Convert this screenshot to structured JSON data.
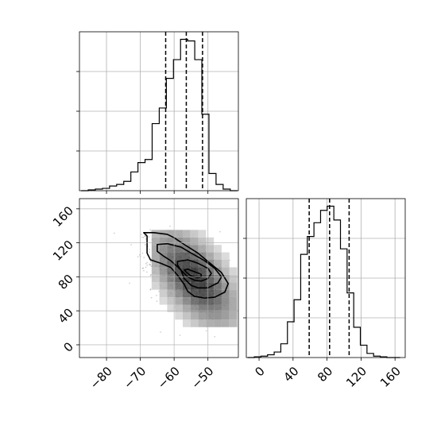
{
  "chart_data": [
    {
      "id": "hist1",
      "type": "histogram",
      "x_range": [
        -88,
        -41
      ],
      "x_ticks": [
        -80,
        -70,
        -60,
        -50
      ],
      "y_ticks": [
        2,
        4,
        6
      ],
      "y_tick_labels_shown": false,
      "grid": true,
      "bin_edges": [
        -87.5,
        -85.4,
        -83.3,
        -81.2,
        -79.1,
        -77.0,
        -74.9,
        -72.8,
        -70.7,
        -68.6,
        -66.5,
        -64.4,
        -62.3,
        -60.2,
        -58.1,
        -56.0,
        -53.9,
        -51.8,
        -49.7,
        -47.6,
        -45.5,
        -43.4,
        -41.3
      ],
      "counts": [
        0.0,
        0.05,
        0.1,
        0.15,
        0.3,
        0.4,
        0.6,
        1.2,
        1.8,
        2.0,
        4.3,
        5.3,
        7.2,
        8.4,
        9.7,
        9.6,
        8.4,
        4.9,
        1.1,
        0.4,
        0.1,
        0.0
      ],
      "quantile_lines": [
        -62.5,
        -56.4,
        -51.6
      ]
    },
    {
      "id": "hist2",
      "type": "histogram",
      "x_range": [
        -15,
        172
      ],
      "x_ticks": [
        0,
        40,
        80,
        120,
        160
      ],
      "x_tick_labels": [
        "0",
        "40",
        "80",
        "120",
        "160"
      ],
      "y_tick_labels_shown": false,
      "grid": true,
      "bin_edges": [
        -13.4,
        -5.6,
        2.2,
        10.0,
        17.8,
        25.6,
        33.4,
        41.2,
        49.0,
        56.8,
        64.6,
        72.4,
        80.2,
        88.0,
        95.8,
        103.6,
        111.4,
        119.2,
        127.0,
        134.8,
        142.6,
        150.4,
        158.2,
        166.0
      ],
      "counts": [
        0.0,
        0.05,
        0.1,
        0.2,
        0.4,
        1.0,
        2.6,
        4.2,
        7.5,
        8.8,
        9.8,
        10.7,
        11.0,
        10.0,
        7.9,
        4.7,
        2.2,
        0.9,
        0.3,
        0.1,
        0.05,
        0.0,
        0.0
      ],
      "quantile_lines": [
        59,
        83,
        106
      ]
    },
    {
      "id": "joint",
      "type": "scatter-density",
      "x_range": [
        -88,
        -41
      ],
      "y_range": [
        -15,
        172
      ],
      "x_ticks": [
        -80,
        -70,
        -60,
        -50
      ],
      "x_tick_labels": [
        "−80",
        "−70",
        "−60",
        "−50"
      ],
      "y_ticks": [
        0,
        40,
        80,
        120,
        160
      ],
      "y_tick_labels": [
        "0",
        "40",
        "80",
        "120",
        "160"
      ],
      "grid": true,
      "density_center": [
        -55.5,
        82
      ],
      "density_spread": [
        5.5,
        22
      ],
      "correlation": -0.45,
      "peak_cell": [
        -54,
        78
      ],
      "contours": [
        [
          [
            -69,
            132
          ],
          [
            -68,
            128
          ],
          [
            -68,
            108
          ],
          [
            -67,
            100
          ],
          [
            -64,
            96
          ],
          [
            -61,
            91
          ],
          [
            -59,
            82
          ],
          [
            -57,
            71
          ],
          [
            -56,
            63
          ],
          [
            -54,
            57
          ],
          [
            -51,
            55
          ],
          [
            -48,
            56
          ],
          [
            -45,
            62
          ],
          [
            -44,
            72
          ],
          [
            -46,
            85
          ],
          [
            -50,
            98
          ],
          [
            -53,
            108
          ],
          [
            -57,
            118
          ],
          [
            -60,
            126
          ],
          [
            -62,
            130
          ],
          [
            -66,
            132
          ]
        ],
        [
          [
            -65,
            118
          ],
          [
            -65,
            110
          ],
          [
            -63,
            104
          ],
          [
            -61,
            99
          ],
          [
            -58,
            88
          ],
          [
            -57,
            78
          ],
          [
            -55,
            70
          ],
          [
            -53,
            67
          ],
          [
            -50,
            67
          ],
          [
            -47,
            73
          ],
          [
            -46,
            80
          ],
          [
            -48,
            90
          ],
          [
            -51,
            99
          ],
          [
            -55,
            108
          ],
          [
            -58,
            115
          ],
          [
            -62,
            119
          ]
        ],
        [
          [
            -59,
            98
          ],
          [
            -59,
            94
          ],
          [
            -58,
            88
          ],
          [
            -56,
            80
          ],
          [
            -54,
            76
          ],
          [
            -52,
            75
          ],
          [
            -50,
            78
          ],
          [
            -49,
            84
          ],
          [
            -50,
            90
          ],
          [
            -53,
            96
          ],
          [
            -56,
            100
          ]
        ],
        [
          [
            -57,
            88
          ],
          [
            -56,
            84
          ],
          [
            -55,
            81
          ],
          [
            -53,
            79
          ],
          [
            -52,
            80
          ],
          [
            -52,
            83
          ],
          [
            -54,
            86
          ],
          [
            -56,
            89
          ]
        ]
      ]
    }
  ]
}
